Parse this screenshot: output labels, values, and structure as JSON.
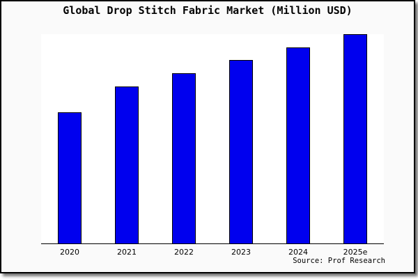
{
  "title": "Global Drop Stitch Fabric Market (Million USD)",
  "source_note": "Source: Prof Research",
  "colors": {
    "frame_background": "#fafafa",
    "frame_border": "#000000",
    "plot_background": "#ffffff",
    "axis_line": "#000000",
    "bar_fill": "#0000ee",
    "bar_border": "#000000",
    "text": "#000000"
  },
  "chart_data": {
    "type": "bar",
    "title": "Global Drop Stitch Fabric Market (Million USD)",
    "categories": [
      "2020",
      "2021",
      "2022",
      "2023",
      "2024",
      "2025e"
    ],
    "values": [
      100,
      120,
      130,
      140,
      150,
      160
    ],
    "values_are_relative_estimates": true,
    "xlabel": "",
    "ylabel": "Million USD",
    "ylim": [
      0,
      160
    ],
    "y_axis_visible": false,
    "grid": false,
    "legend": false,
    "bar_color": "#0000ee",
    "bar_border_color": "#000000",
    "source": "Source: Prof Research"
  }
}
